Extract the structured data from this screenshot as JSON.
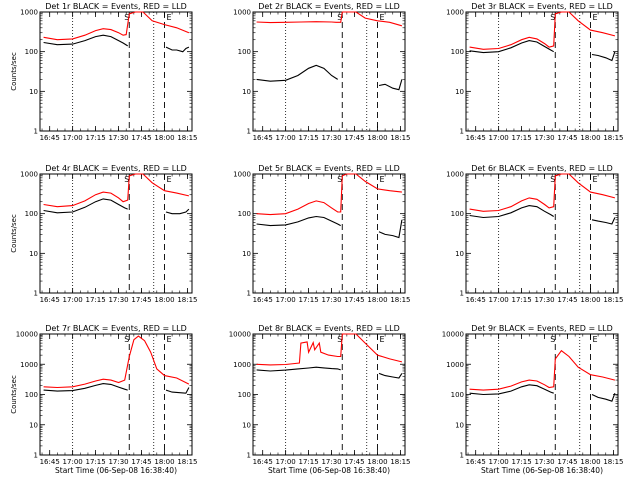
{
  "colors": {
    "events": "#000000",
    "lld": "#ff0000",
    "background": "#ffffff"
  },
  "chart_data": [
    {
      "type": "line",
      "title": "Det 1r BLACK = Events, RED = LLD",
      "xlabel": "",
      "ylabel": "Counts/sec",
      "x_ticks": [
        "16:45",
        "17:00",
        "17:15",
        "17:30",
        "17:45",
        "18:00",
        "18:15"
      ],
      "y_ticks": [
        "1",
        "10",
        "100",
        "1000"
      ],
      "ylim": [
        1,
        1000
      ],
      "y_scale": "log",
      "markers": [
        {
          "label": "S",
          "x": "17:37"
        },
        {
          "label": "E",
          "x": "18:00"
        }
      ],
      "series": [
        {
          "color": "red",
          "x": [
            "16:41",
            "16:50",
            "17:00",
            "17:08",
            "17:15",
            "17:20",
            "17:25",
            "17:30",
            "17:33",
            "17:35",
            "17:37",
            "17:41",
            "17:46",
            "17:52",
            "18:00",
            "18:08",
            "18:16"
          ],
          "values": [
            230,
            200,
            210,
            260,
            340,
            380,
            360,
            300,
            260,
            270,
            900,
            1000,
            1000,
            600,
            480,
            400,
            300
          ]
        },
        {
          "color": "black",
          "x": [
            "16:41",
            "16:50",
            "17:00",
            "17:08",
            "17:15",
            "17:20",
            "17:25",
            "17:30",
            "17:33",
            "17:36",
            "18:01",
            "18:05",
            "18:08",
            "18:12",
            "18:14",
            "18:16"
          ],
          "values": [
            170,
            150,
            155,
            190,
            240,
            260,
            240,
            190,
            165,
            140,
            130,
            110,
            110,
            100,
            120,
            130
          ]
        }
      ]
    },
    {
      "type": "line",
      "title": "Det 2r BLACK = Events, RED = LLD",
      "xlabel": "",
      "ylabel": "",
      "x_ticks": [
        "16:45",
        "17:00",
        "17:15",
        "17:30",
        "17:45",
        "18:00",
        "18:15"
      ],
      "y_ticks": [
        "1",
        "10",
        "100",
        "1000"
      ],
      "ylim": [
        1,
        1000
      ],
      "y_scale": "log",
      "markers": [
        {
          "label": "S",
          "x": "17:37"
        },
        {
          "label": "E",
          "x": "18:00"
        }
      ],
      "series": [
        {
          "color": "red",
          "x": [
            "16:41",
            "16:50",
            "17:00",
            "17:10",
            "17:20",
            "17:30",
            "17:33",
            "17:36",
            "17:37",
            "17:41",
            "17:46",
            "17:52",
            "18:00",
            "18:08",
            "18:16"
          ],
          "values": [
            560,
            540,
            550,
            560,
            570,
            560,
            550,
            550,
            1000,
            1000,
            1000,
            700,
            600,
            550,
            450
          ]
        },
        {
          "color": "black",
          "x": [
            "16:41",
            "16:50",
            "17:00",
            "17:08",
            "17:15",
            "17:20",
            "17:25",
            "17:30",
            "17:34",
            "18:01",
            "18:05",
            "18:10",
            "18:14",
            "18:16"
          ],
          "values": [
            20,
            18,
            19,
            25,
            38,
            45,
            38,
            25,
            20,
            14,
            15,
            12,
            11,
            20
          ]
        }
      ]
    },
    {
      "type": "line",
      "title": "Det 3r BLACK = Events, RED = LLD",
      "xlabel": "",
      "ylabel": "",
      "x_ticks": [
        "16:45",
        "17:00",
        "17:15",
        "17:30",
        "17:45",
        "18:00",
        "18:15"
      ],
      "y_ticks": [
        "1",
        "10",
        "100",
        "1000"
      ],
      "ylim": [
        1,
        1000
      ],
      "y_scale": "log",
      "markers": [
        {
          "label": "S",
          "x": "17:37"
        },
        {
          "label": "E",
          "x": "18:00"
        }
      ],
      "series": [
        {
          "color": "red",
          "x": [
            "16:41",
            "16:50",
            "17:00",
            "17:08",
            "17:15",
            "17:20",
            "17:25",
            "17:30",
            "17:33",
            "17:36",
            "17:37",
            "17:41",
            "17:46",
            "17:52",
            "18:00",
            "18:08",
            "18:16"
          ],
          "values": [
            130,
            115,
            120,
            150,
            200,
            230,
            210,
            160,
            130,
            140,
            900,
            1000,
            1000,
            600,
            350,
            300,
            250
          ]
        },
        {
          "color": "black",
          "x": [
            "16:41",
            "16:50",
            "17:00",
            "17:08",
            "17:15",
            "17:20",
            "17:25",
            "17:30",
            "17:34",
            "17:36",
            "18:01",
            "18:05",
            "18:10",
            "18:14",
            "18:16"
          ],
          "values": [
            105,
            95,
            100,
            125,
            165,
            190,
            175,
            135,
            110,
            100,
            85,
            80,
            70,
            60,
            100
          ]
        }
      ]
    },
    {
      "type": "line",
      "title": "Det 4r BLACK = Events, RED = LLD",
      "xlabel": "",
      "ylabel": "Counts/sec",
      "x_ticks": [
        "16:45",
        "17:00",
        "17:15",
        "17:30",
        "17:45",
        "18:00",
        "18:15"
      ],
      "y_ticks": [
        "1",
        "10",
        "100",
        "1000"
      ],
      "ylim": [
        1,
        1000
      ],
      "y_scale": "log",
      "markers": [
        {
          "label": "S",
          "x": "17:37"
        },
        {
          "label": "E",
          "x": "18:00"
        }
      ],
      "series": [
        {
          "color": "red",
          "x": [
            "16:41",
            "16:50",
            "17:00",
            "17:08",
            "17:15",
            "17:20",
            "17:25",
            "17:30",
            "17:33",
            "17:36",
            "17:37",
            "17:41",
            "17:46",
            "17:52",
            "18:00",
            "18:08",
            "18:16"
          ],
          "values": [
            170,
            150,
            160,
            210,
            300,
            350,
            330,
            250,
            200,
            220,
            900,
            1000,
            1000,
            600,
            380,
            330,
            280
          ]
        },
        {
          "color": "black",
          "x": [
            "16:41",
            "16:50",
            "17:00",
            "17:08",
            "17:15",
            "17:20",
            "17:25",
            "17:30",
            "17:34",
            "17:36",
            "18:01",
            "18:05",
            "18:10",
            "18:14",
            "18:16"
          ],
          "values": [
            120,
            105,
            110,
            145,
            200,
            235,
            220,
            170,
            140,
            130,
            110,
            100,
            100,
            110,
            130
          ]
        }
      ]
    },
    {
      "type": "line",
      "title": "Det 5r BLACK = Events, RED = LLD",
      "xlabel": "",
      "ylabel": "",
      "x_ticks": [
        "16:45",
        "17:00",
        "17:15",
        "17:30",
        "17:45",
        "18:00",
        "18:15"
      ],
      "y_ticks": [
        "1",
        "10",
        "100",
        "1000"
      ],
      "ylim": [
        1,
        1000
      ],
      "y_scale": "log",
      "markers": [
        {
          "label": "S",
          "x": "17:37"
        },
        {
          "label": "E",
          "x": "18:00"
        }
      ],
      "series": [
        {
          "color": "red",
          "x": [
            "16:41",
            "16:50",
            "17:00",
            "17:08",
            "17:15",
            "17:20",
            "17:25",
            "17:30",
            "17:34",
            "17:36",
            "17:37",
            "17:40",
            "17:46",
            "17:52",
            "18:00",
            "18:08",
            "18:16"
          ],
          "values": [
            100,
            95,
            100,
            130,
            180,
            210,
            190,
            140,
            110,
            110,
            900,
            1000,
            1000,
            650,
            420,
            380,
            350
          ]
        },
        {
          "color": "black",
          "x": [
            "16:41",
            "16:50",
            "17:00",
            "17:08",
            "17:15",
            "17:20",
            "17:25",
            "17:30",
            "17:34",
            "17:36",
            "18:01",
            "18:05",
            "18:10",
            "18:14",
            "18:16"
          ],
          "values": [
            55,
            50,
            52,
            62,
            78,
            85,
            80,
            65,
            55,
            50,
            35,
            30,
            28,
            25,
            70
          ]
        }
      ]
    },
    {
      "type": "line",
      "title": "Det 6r BLACK = Events, RED = LLD",
      "xlabel": "",
      "ylabel": "",
      "x_ticks": [
        "16:45",
        "17:00",
        "17:15",
        "17:30",
        "17:45",
        "18:00",
        "18:15"
      ],
      "y_ticks": [
        "1",
        "10",
        "100",
        "1000"
      ],
      "ylim": [
        1,
        1000
      ],
      "y_scale": "log",
      "markers": [
        {
          "label": "S",
          "x": "17:37"
        },
        {
          "label": "E",
          "x": "18:00"
        }
      ],
      "series": [
        {
          "color": "red",
          "x": [
            "16:41",
            "16:50",
            "17:00",
            "17:08",
            "17:15",
            "17:20",
            "17:25",
            "17:30",
            "17:33",
            "17:36",
            "17:37",
            "17:41",
            "17:46",
            "17:52",
            "18:00",
            "18:08",
            "18:16"
          ],
          "values": [
            130,
            115,
            120,
            150,
            210,
            250,
            230,
            170,
            140,
            150,
            900,
            1000,
            1000,
            600,
            350,
            300,
            250
          ]
        },
        {
          "color": "black",
          "x": [
            "16:41",
            "16:50",
            "17:00",
            "17:08",
            "17:15",
            "17:20",
            "17:25",
            "17:30",
            "17:34",
            "17:36",
            "18:01",
            "18:05",
            "18:10",
            "18:14",
            "18:16"
          ],
          "values": [
            90,
            80,
            85,
            105,
            140,
            160,
            150,
            115,
            95,
            85,
            70,
            65,
            60,
            55,
            80
          ]
        }
      ]
    },
    {
      "type": "line",
      "title": "Det 7r BLACK = Events, RED = LLD",
      "xlabel": "Start Time (06-Sep-08 16:38:40)",
      "ylabel": "Counts/sec",
      "x_ticks": [
        "16:45",
        "17:00",
        "17:15",
        "17:30",
        "17:45",
        "18:00",
        "18:15"
      ],
      "y_ticks": [
        "1",
        "10",
        "100",
        "1000",
        "10000"
      ],
      "ylim": [
        1,
        10000
      ],
      "y_scale": "log",
      "markers": [
        {
          "label": "S",
          "x": "17:37"
        },
        {
          "label": "E",
          "x": "18:00"
        }
      ],
      "series": [
        {
          "color": "red",
          "x": [
            "16:41",
            "16:50",
            "17:00",
            "17:08",
            "17:15",
            "17:20",
            "17:25",
            "17:30",
            "17:34",
            "17:37",
            "17:40",
            "17:43",
            "17:47",
            "17:51",
            "17:55",
            "18:00",
            "18:08",
            "18:16"
          ],
          "values": [
            180,
            170,
            180,
            220,
            280,
            320,
            300,
            250,
            300,
            1800,
            6500,
            8500,
            6000,
            2500,
            700,
            420,
            350,
            220
          ]
        },
        {
          "color": "black",
          "x": [
            "16:41",
            "16:50",
            "17:00",
            "17:08",
            "17:15",
            "17:20",
            "17:25",
            "17:30",
            "17:34",
            "17:36",
            "18:01",
            "18:05",
            "18:10",
            "18:14",
            "18:16"
          ],
          "values": [
            140,
            130,
            135,
            160,
            200,
            230,
            215,
            175,
            150,
            140,
            140,
            120,
            115,
            110,
            170
          ]
        }
      ]
    },
    {
      "type": "line",
      "title": "Det 8r BLACK = Events, RED = LLD",
      "xlabel": "Start Time (06-Sep-08 16:38:40)",
      "ylabel": "",
      "x_ticks": [
        "16:45",
        "17:00",
        "17:15",
        "17:30",
        "17:45",
        "18:00",
        "18:15"
      ],
      "y_ticks": [
        "1",
        "10",
        "100",
        "1000",
        "10000"
      ],
      "ylim": [
        1,
        10000
      ],
      "y_scale": "log",
      "markers": [
        {
          "label": "S",
          "x": "17:37"
        },
        {
          "label": "E",
          "x": "18:00"
        }
      ],
      "series": [
        {
          "color": "red",
          "x": [
            "16:41",
            "16:50",
            "17:00",
            "17:09",
            "17:10",
            "17:14",
            "17:15",
            "17:18",
            "17:19",
            "17:22",
            "17:23",
            "17:28",
            "17:34",
            "17:36",
            "17:37",
            "17:41",
            "17:46",
            "17:52",
            "18:00",
            "18:08",
            "18:16"
          ],
          "values": [
            1000,
            950,
            980,
            1100,
            5000,
            5500,
            2500,
            5200,
            3000,
            5000,
            2500,
            2000,
            1800,
            1800,
            10000,
            10000,
            10000,
            5000,
            2000,
            1500,
            1200
          ]
        },
        {
          "color": "black",
          "x": [
            "16:41",
            "16:50",
            "17:00",
            "17:08",
            "17:15",
            "17:20",
            "17:25",
            "17:30",
            "17:34",
            "17:36",
            "18:01",
            "18:05",
            "18:10",
            "18:14",
            "18:16"
          ],
          "values": [
            650,
            600,
            640,
            700,
            750,
            800,
            760,
            720,
            700,
            650,
            500,
            420,
            380,
            350,
            500
          ]
        }
      ]
    },
    {
      "type": "line",
      "title": "Det 9r BLACK = Events, RED = LLD",
      "xlabel": "Start Time (06-Sep-08 16:38:40)",
      "ylabel": "",
      "x_ticks": [
        "16:45",
        "17:00",
        "17:15",
        "17:30",
        "17:45",
        "18:00",
        "18:15"
      ],
      "y_ticks": [
        "1",
        "10",
        "100",
        "1000",
        "10000"
      ],
      "ylim": [
        1,
        10000
      ],
      "y_scale": "log",
      "markers": [
        {
          "label": "S",
          "x": "17:37"
        },
        {
          "label": "E",
          "x": "18:00"
        }
      ],
      "series": [
        {
          "color": "red",
          "x": [
            "16:41",
            "16:50",
            "17:00",
            "17:08",
            "17:15",
            "17:20",
            "17:25",
            "17:30",
            "17:33",
            "17:36",
            "17:37",
            "17:41",
            "17:46",
            "17:52",
            "18:00",
            "18:08",
            "18:16"
          ],
          "values": [
            150,
            140,
            150,
            190,
            260,
            300,
            280,
            210,
            170,
            180,
            1500,
            2800,
            1800,
            800,
            450,
            380,
            300
          ]
        },
        {
          "color": "black",
          "x": [
            "16:41",
            "16:50",
            "17:00",
            "17:08",
            "17:15",
            "17:20",
            "17:25",
            "17:30",
            "17:34",
            "17:36",
            "18:01",
            "18:05",
            "18:10",
            "18:14",
            "18:16"
          ],
          "values": [
            110,
            100,
            105,
            130,
            180,
            210,
            195,
            150,
            120,
            110,
            100,
            80,
            70,
            60,
            110
          ]
        }
      ]
    }
  ]
}
